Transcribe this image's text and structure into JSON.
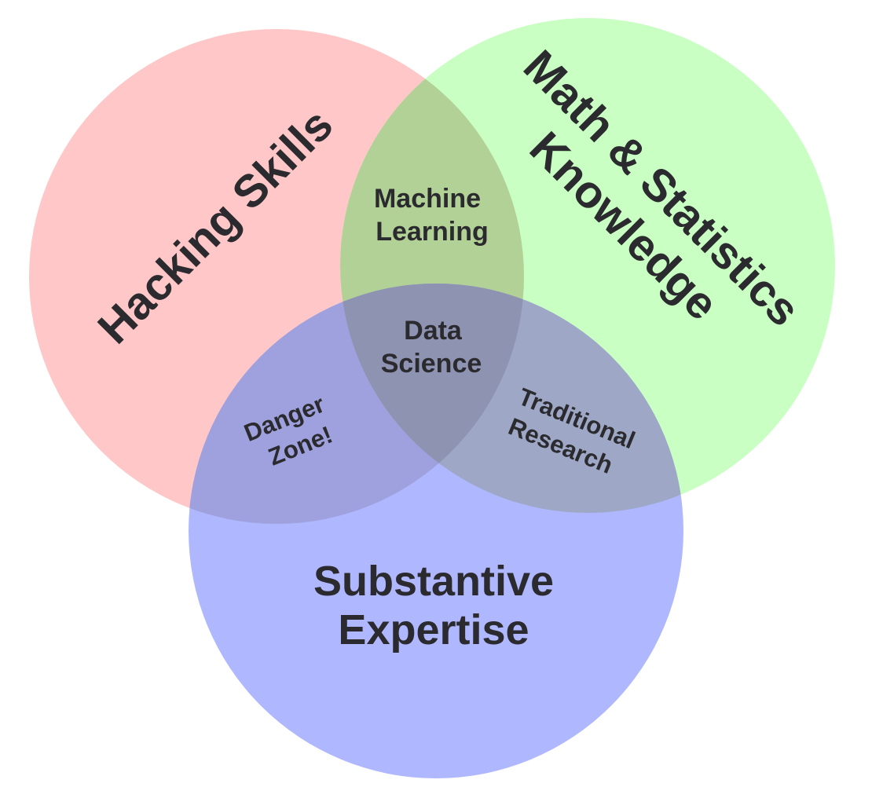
{
  "diagram": {
    "colors": {
      "hacking": "#ffc7c7",
      "math": "#c9ffc3",
      "substantive": "#afb7ff",
      "machine_learning": "#b2d196",
      "danger_zone": "#9ea1dd",
      "traditional_research": "#9ea8c6",
      "data_science": "#8e93b1",
      "text": "#2b2b2f"
    },
    "sets": [
      {
        "id": "hacking",
        "label": "Hacking Skills"
      },
      {
        "id": "math",
        "label_line1": "Math & Statistics",
        "label_line2": "Knowledge"
      },
      {
        "id": "substantive",
        "label_line1": "Substantive",
        "label_line2": "Expertise"
      }
    ],
    "regions": [
      {
        "id": "machine_learning",
        "label_line1": "Machine",
        "label_line2": "Learning"
      },
      {
        "id": "danger_zone",
        "label_line1": "Danger",
        "label_line2": "Zone!"
      },
      {
        "id": "traditional_research",
        "label_line1": "Traditional",
        "label_line2": "Research"
      },
      {
        "id": "data_science",
        "label_line1": "Data",
        "label_line2": "Science"
      }
    ]
  }
}
